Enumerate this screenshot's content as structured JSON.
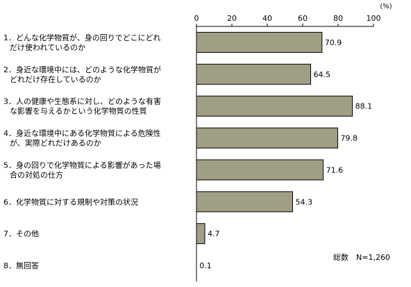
{
  "chart_data": {
    "type": "bar",
    "orientation": "horizontal",
    "title": "",
    "xlabel": "",
    "ylabel": "",
    "unit_label": "(%)",
    "xlim": [
      0,
      100
    ],
    "x_ticks": [
      0,
      20,
      40,
      60,
      80,
      100
    ],
    "grid": false,
    "categories": [
      [
        "1．どんな化学物質が、身の回りでどこにどれ",
        "だけ使われているのか"
      ],
      [
        "2．身近な環境中には、どのような化学物質が",
        "どれだけ存在しているのか"
      ],
      [
        "3．人の健康や生態系に対し、どのような有害",
        "な影響を与えるかという化学物質の性質"
      ],
      [
        "4．身近な環境中にある化学物質による危険性",
        "が、実際どれだけあるのか"
      ],
      [
        "5．身の回りで化学物質による影響があった場",
        "合の対処の仕方"
      ],
      [
        "6．化学物質に対する規制や対策の状況"
      ],
      [
        "7．その他"
      ],
      [
        "8．無回答"
      ]
    ],
    "values": [
      70.9,
      64.5,
      88.1,
      79.8,
      71.6,
      54.3,
      4.7,
      0.1
    ],
    "value_labels": [
      "70.9",
      "64.5",
      "88.1",
      "79.8",
      "71.6",
      "54.3",
      "4.7",
      "0.1"
    ],
    "bar_color": "#a09e84",
    "annotation": "総数　N=1,260"
  }
}
